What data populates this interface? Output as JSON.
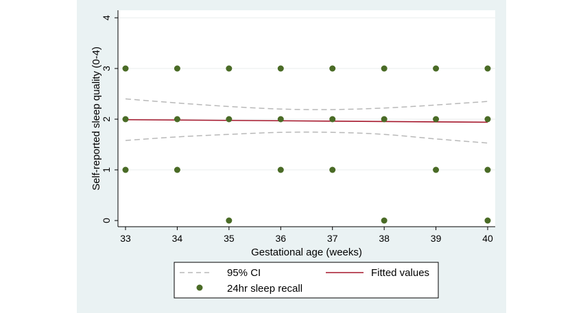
{
  "chart_data": {
    "type": "scatter",
    "xlabel": "Gestational age (weeks)",
    "ylabel": "Self-reported sleep quality (0-4)",
    "xlim": [
      33,
      40
    ],
    "ylim": [
      0,
      4
    ],
    "xticks": [
      33,
      34,
      35,
      36,
      37,
      38,
      39,
      40
    ],
    "yticks": [
      0,
      1,
      2,
      3,
      4
    ],
    "grid": true,
    "legend_position": "bottom",
    "series": [
      {
        "name": "24hr sleep recall",
        "kind": "scatter",
        "color": "#4a6b26",
        "points": [
          [
            33,
            3
          ],
          [
            33,
            2
          ],
          [
            33,
            1
          ],
          [
            34,
            3
          ],
          [
            34,
            2
          ],
          [
            34,
            1
          ],
          [
            35,
            3
          ],
          [
            35,
            2
          ],
          [
            35,
            0
          ],
          [
            36,
            3
          ],
          [
            36,
            2
          ],
          [
            36,
            1
          ],
          [
            37,
            3
          ],
          [
            37,
            2
          ],
          [
            37,
            1
          ],
          [
            38,
            3
          ],
          [
            38,
            2
          ],
          [
            38,
            0
          ],
          [
            39,
            3
          ],
          [
            39,
            2
          ],
          [
            39,
            1
          ],
          [
            40,
            3
          ],
          [
            40,
            2
          ],
          [
            40,
            1
          ],
          [
            40,
            0
          ]
        ]
      },
      {
        "name": "Fitted values",
        "kind": "line",
        "color": "#a5162b",
        "x": [
          33,
          40
        ],
        "y": [
          1.99,
          1.94
        ]
      },
      {
        "name": "95% CI",
        "kind": "dashed-band",
        "color": "#b8b8b8",
        "x": [
          33,
          34,
          35,
          36,
          37,
          38,
          39,
          40
        ],
        "upper": [
          2.4,
          2.32,
          2.25,
          2.2,
          2.19,
          2.22,
          2.28,
          2.35
        ],
        "lower": [
          1.58,
          1.65,
          1.7,
          1.74,
          1.74,
          1.7,
          1.61,
          1.53
        ]
      }
    ],
    "legend": [
      {
        "label": "95% CI",
        "symbol": "dashed",
        "color": "#b8b8b8"
      },
      {
        "label": "Fitted values",
        "symbol": "line",
        "color": "#a5162b"
      },
      {
        "label": "24hr sleep recall",
        "symbol": "dot",
        "color": "#4a6b26"
      }
    ]
  }
}
